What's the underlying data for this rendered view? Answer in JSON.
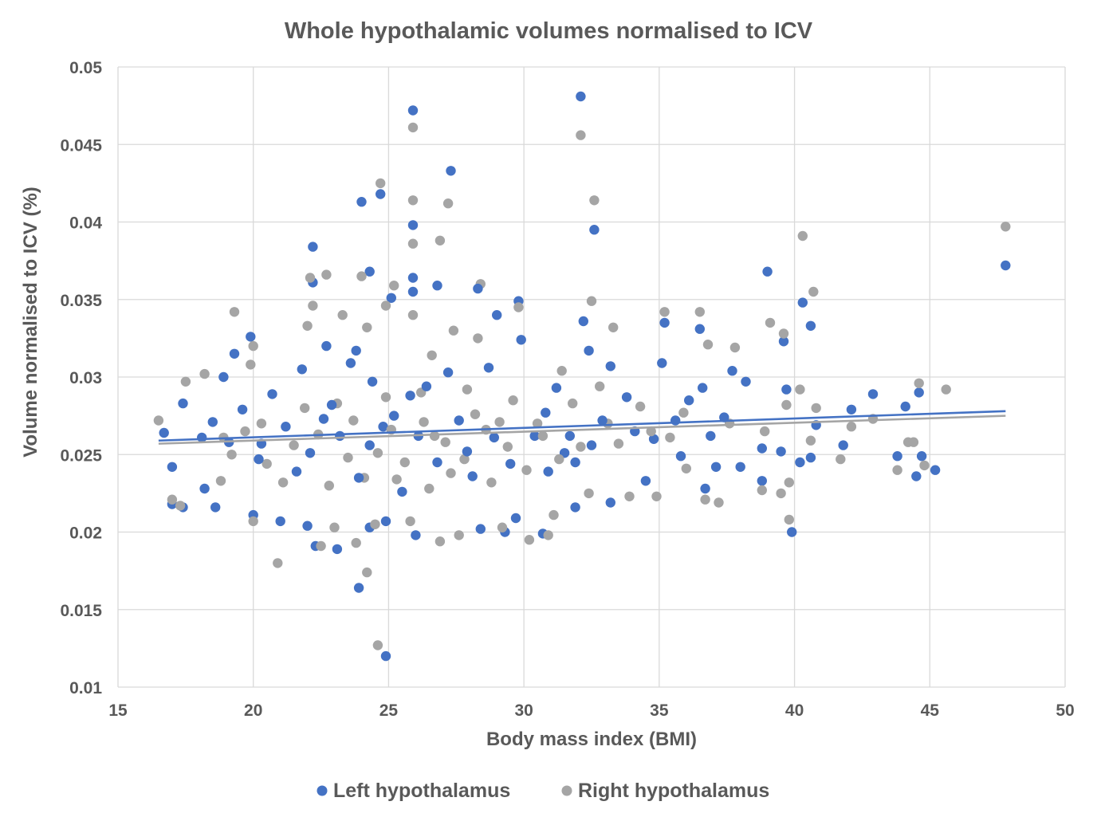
{
  "chart_data": {
    "type": "scatter",
    "title": "Whole hypothalamic volumes normalised to ICV",
    "xlabel": "Body mass index (BMI)",
    "ylabel": "Volume normalised to ICV (%)",
    "xlim": [
      15,
      50
    ],
    "ylim": [
      0.01,
      0.05
    ],
    "x_ticks": [
      "15",
      "20",
      "25",
      "30",
      "35",
      "40",
      "45",
      "50"
    ],
    "y_ticks": [
      "0.01",
      "0.015",
      "0.02",
      "0.025",
      "0.03",
      "0.035",
      "0.04",
      "0.045",
      "0.05"
    ],
    "grid": true,
    "legend_position": "bottom",
    "colors": {
      "left": "#4472C4",
      "right": "#A5A5A5",
      "axis": "#D9D9D9",
      "text": "#595959"
    },
    "series": [
      {
        "name": "Left hypothalamus",
        "color": "#4472C4",
        "trendline": {
          "x": [
            16.5,
            47.8
          ],
          "y": [
            0.0259,
            0.0278
          ]
        },
        "points": [
          [
            25.9,
            0.0472
          ],
          [
            32.1,
            0.0481
          ],
          [
            27.3,
            0.0433
          ],
          [
            24.0,
            0.0413
          ],
          [
            24.7,
            0.0418
          ],
          [
            25.9,
            0.0398
          ],
          [
            32.6,
            0.0395
          ],
          [
            22.2,
            0.0384
          ],
          [
            24.3,
            0.0368
          ],
          [
            25.9,
            0.0364
          ],
          [
            22.2,
            0.0361
          ],
          [
            26.8,
            0.0359
          ],
          [
            25.9,
            0.0355
          ],
          [
            25.1,
            0.0351
          ],
          [
            29.8,
            0.0349
          ],
          [
            28.3,
            0.0357
          ],
          [
            29.0,
            0.034
          ],
          [
            39.0,
            0.0368
          ],
          [
            40.3,
            0.0348
          ],
          [
            40.6,
            0.0333
          ],
          [
            47.8,
            0.0372
          ],
          [
            35.2,
            0.0335
          ],
          [
            36.5,
            0.0331
          ],
          [
            39.6,
            0.0323
          ],
          [
            32.2,
            0.0336
          ],
          [
            19.9,
            0.0326
          ],
          [
            29.9,
            0.0324
          ],
          [
            19.3,
            0.0315
          ],
          [
            22.7,
            0.032
          ],
          [
            23.8,
            0.0317
          ],
          [
            32.4,
            0.0317
          ],
          [
            35.1,
            0.0309
          ],
          [
            37.7,
            0.0304
          ],
          [
            18.9,
            0.03
          ],
          [
            33.2,
            0.0307
          ],
          [
            42.9,
            0.0289
          ],
          [
            44.6,
            0.029
          ],
          [
            44.1,
            0.0281
          ],
          [
            42.1,
            0.0279
          ],
          [
            40.8,
            0.0269
          ],
          [
            39.7,
            0.0292
          ],
          [
            36.6,
            0.0293
          ],
          [
            17.4,
            0.0283
          ],
          [
            38.2,
            0.0297
          ],
          [
            16.7,
            0.0264
          ],
          [
            18.1,
            0.0261
          ],
          [
            38.8,
            0.0254
          ],
          [
            41.8,
            0.0256
          ],
          [
            43.8,
            0.0249
          ],
          [
            44.7,
            0.0249
          ],
          [
            44.5,
            0.0236
          ],
          [
            45.2,
            0.024
          ],
          [
            40.2,
            0.0245
          ],
          [
            40.6,
            0.0248
          ],
          [
            39.5,
            0.0252
          ],
          [
            38.0,
            0.0242
          ],
          [
            38.8,
            0.0233
          ],
          [
            17.0,
            0.0242
          ],
          [
            18.2,
            0.0228
          ],
          [
            18.6,
            0.0216
          ],
          [
            17.0,
            0.0218
          ],
          [
            17.4,
            0.0216
          ],
          [
            20.0,
            0.0211
          ],
          [
            21.0,
            0.0207
          ],
          [
            22.0,
            0.0204
          ],
          [
            22.3,
            0.0191
          ],
          [
            23.1,
            0.0189
          ],
          [
            24.3,
            0.0203
          ],
          [
            24.9,
            0.0207
          ],
          [
            23.9,
            0.0164
          ],
          [
            24.9,
            0.012
          ],
          [
            26.0,
            0.0198
          ],
          [
            28.4,
            0.0202
          ],
          [
            29.3,
            0.02
          ],
          [
            29.7,
            0.0209
          ],
          [
            30.7,
            0.0199
          ],
          [
            31.9,
            0.0216
          ],
          [
            33.2,
            0.0219
          ],
          [
            34.5,
            0.0233
          ],
          [
            36.7,
            0.0228
          ],
          [
            39.9,
            0.02
          ],
          [
            37.1,
            0.0242
          ],
          [
            35.8,
            0.0249
          ],
          [
            34.8,
            0.026
          ],
          [
            36.1,
            0.0285
          ],
          [
            30.8,
            0.0277
          ],
          [
            31.5,
            0.0251
          ],
          [
            31.9,
            0.0245
          ],
          [
            30.4,
            0.0262
          ],
          [
            28.9,
            0.0261
          ],
          [
            27.6,
            0.0272
          ],
          [
            26.1,
            0.0262
          ],
          [
            25.2,
            0.0275
          ],
          [
            24.3,
            0.0256
          ],
          [
            23.2,
            0.0262
          ],
          [
            22.1,
            0.0251
          ],
          [
            21.2,
            0.0268
          ],
          [
            20.3,
            0.0257
          ],
          [
            19.6,
            0.0279
          ],
          [
            24.4,
            0.0297
          ],
          [
            25.8,
            0.0288
          ],
          [
            27.2,
            0.0303
          ],
          [
            28.7,
            0.0306
          ],
          [
            31.2,
            0.0293
          ],
          [
            33.8,
            0.0287
          ],
          [
            21.8,
            0.0305
          ],
          [
            23.6,
            0.0309
          ],
          [
            26.4,
            0.0294
          ],
          [
            20.7,
            0.0289
          ],
          [
            22.9,
            0.0282
          ],
          [
            26.8,
            0.0245
          ],
          [
            28.1,
            0.0236
          ],
          [
            29.5,
            0.0244
          ],
          [
            25.5,
            0.0226
          ],
          [
            23.9,
            0.0235
          ],
          [
            21.6,
            0.0239
          ],
          [
            20.2,
            0.0247
          ],
          [
            30.9,
            0.0239
          ],
          [
            32.5,
            0.0256
          ],
          [
            34.1,
            0.0265
          ],
          [
            31.7,
            0.0262
          ],
          [
            32.9,
            0.0272
          ],
          [
            27.9,
            0.0252
          ],
          [
            24.8,
            0.0268
          ],
          [
            22.6,
            0.0273
          ],
          [
            19.1,
            0.0258
          ],
          [
            18.5,
            0.0271
          ],
          [
            36.9,
            0.0262
          ],
          [
            37.4,
            0.0274
          ],
          [
            35.6,
            0.0272
          ]
        ]
      },
      {
        "name": "Right hypothalamus",
        "color": "#A5A5A5",
        "trendline": {
          "x": [
            16.5,
            47.8
          ],
          "y": [
            0.0257,
            0.0275
          ]
        },
        "points": [
          [
            25.9,
            0.0461
          ],
          [
            32.1,
            0.0456
          ],
          [
            24.7,
            0.0425
          ],
          [
            27.2,
            0.0412
          ],
          [
            25.9,
            0.0414
          ],
          [
            32.6,
            0.0414
          ],
          [
            47.8,
            0.0397
          ],
          [
            40.3,
            0.0391
          ],
          [
            26.9,
            0.0388
          ],
          [
            25.9,
            0.0386
          ],
          [
            22.7,
            0.0366
          ],
          [
            22.1,
            0.0364
          ],
          [
            24.0,
            0.0365
          ],
          [
            25.2,
            0.0359
          ],
          [
            28.4,
            0.036
          ],
          [
            40.7,
            0.0355
          ],
          [
            32.5,
            0.0349
          ],
          [
            22.2,
            0.0346
          ],
          [
            24.9,
            0.0346
          ],
          [
            29.8,
            0.0345
          ],
          [
            36.5,
            0.0342
          ],
          [
            35.2,
            0.0342
          ],
          [
            19.3,
            0.0342
          ],
          [
            23.3,
            0.034
          ],
          [
            25.9,
            0.034
          ],
          [
            39.1,
            0.0335
          ],
          [
            22.0,
            0.0333
          ],
          [
            24.2,
            0.0332
          ],
          [
            33.3,
            0.0332
          ],
          [
            39.6,
            0.0328
          ],
          [
            27.4,
            0.033
          ],
          [
            37.8,
            0.0319
          ],
          [
            36.8,
            0.0321
          ],
          [
            20.0,
            0.032
          ],
          [
            26.6,
            0.0314
          ],
          [
            28.3,
            0.0325
          ],
          [
            19.9,
            0.0308
          ],
          [
            18.2,
            0.0302
          ],
          [
            17.5,
            0.0297
          ],
          [
            16.5,
            0.0272
          ],
          [
            44.6,
            0.0296
          ],
          [
            45.6,
            0.0292
          ],
          [
            42.9,
            0.0273
          ],
          [
            40.8,
            0.028
          ],
          [
            40.2,
            0.0292
          ],
          [
            39.7,
            0.0282
          ],
          [
            38.9,
            0.0265
          ],
          [
            37.6,
            0.027
          ],
          [
            42.1,
            0.0268
          ],
          [
            43.8,
            0.024
          ],
          [
            44.2,
            0.0258
          ],
          [
            44.4,
            0.0258
          ],
          [
            44.8,
            0.0243
          ],
          [
            41.7,
            0.0247
          ],
          [
            40.6,
            0.0259
          ],
          [
            39.8,
            0.0232
          ],
          [
            39.5,
            0.0225
          ],
          [
            38.8,
            0.0227
          ],
          [
            37.2,
            0.0219
          ],
          [
            36.7,
            0.0221
          ],
          [
            39.8,
            0.0208
          ],
          [
            17.0,
            0.0221
          ],
          [
            17.3,
            0.0217
          ],
          [
            18.8,
            0.0233
          ],
          [
            20.0,
            0.0207
          ],
          [
            20.9,
            0.018
          ],
          [
            22.5,
            0.0191
          ],
          [
            23.0,
            0.0203
          ],
          [
            23.8,
            0.0193
          ],
          [
            24.2,
            0.0174
          ],
          [
            24.6,
            0.0127
          ],
          [
            24.5,
            0.0205
          ],
          [
            25.8,
            0.0207
          ],
          [
            26.9,
            0.0194
          ],
          [
            27.6,
            0.0198
          ],
          [
            29.2,
            0.0203
          ],
          [
            30.2,
            0.0195
          ],
          [
            30.9,
            0.0198
          ],
          [
            31.1,
            0.0211
          ],
          [
            32.4,
            0.0225
          ],
          [
            33.9,
            0.0223
          ],
          [
            34.9,
            0.0223
          ],
          [
            36.0,
            0.0241
          ],
          [
            35.4,
            0.0261
          ],
          [
            34.3,
            0.0281
          ],
          [
            33.1,
            0.027
          ],
          [
            31.8,
            0.0283
          ],
          [
            30.5,
            0.027
          ],
          [
            29.4,
            0.0255
          ],
          [
            28.6,
            0.0266
          ],
          [
            27.8,
            0.0247
          ],
          [
            26.7,
            0.0262
          ],
          [
            25.6,
            0.0245
          ],
          [
            24.6,
            0.0251
          ],
          [
            23.5,
            0.0248
          ],
          [
            22.4,
            0.0263
          ],
          [
            21.5,
            0.0256
          ],
          [
            20.5,
            0.0244
          ],
          [
            19.7,
            0.0265
          ],
          [
            18.9,
            0.0261
          ],
          [
            21.9,
            0.028
          ],
          [
            23.1,
            0.0283
          ],
          [
            24.9,
            0.0287
          ],
          [
            26.2,
            0.029
          ],
          [
            27.9,
            0.0292
          ],
          [
            29.6,
            0.0285
          ],
          [
            31.4,
            0.0304
          ],
          [
            32.8,
            0.0294
          ],
          [
            22.8,
            0.023
          ],
          [
            24.1,
            0.0235
          ],
          [
            25.3,
            0.0234
          ],
          [
            26.5,
            0.0228
          ],
          [
            27.3,
            0.0238
          ],
          [
            28.8,
            0.0232
          ],
          [
            30.1,
            0.024
          ],
          [
            31.3,
            0.0247
          ],
          [
            32.1,
            0.0255
          ],
          [
            33.5,
            0.0257
          ],
          [
            34.7,
            0.0265
          ],
          [
            35.9,
            0.0277
          ],
          [
            21.1,
            0.0232
          ],
          [
            20.3,
            0.027
          ],
          [
            19.2,
            0.025
          ],
          [
            23.7,
            0.0272
          ],
          [
            25.1,
            0.0266
          ],
          [
            26.3,
            0.0271
          ],
          [
            27.1,
            0.0258
          ],
          [
            28.2,
            0.0276
          ],
          [
            29.1,
            0.0271
          ],
          [
            30.7,
            0.0262
          ]
        ]
      }
    ]
  }
}
